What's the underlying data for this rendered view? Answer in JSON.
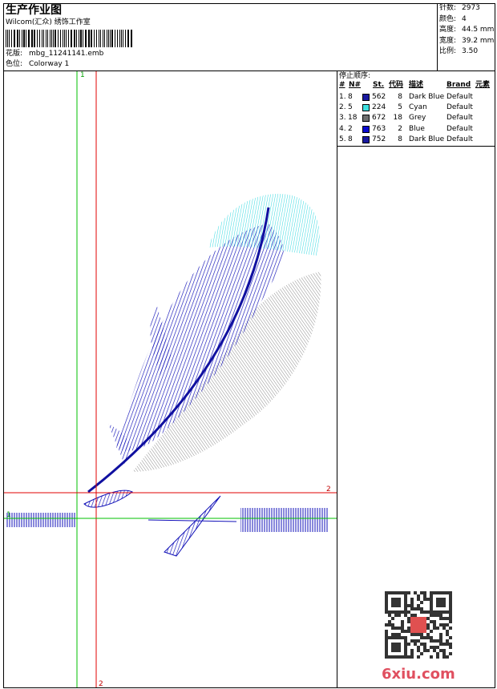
{
  "header": {
    "title": "生产作业图",
    "studio": "Wilcom(汇众) 绣饰工作室",
    "design_label": "花版:",
    "design_file": "mbg_11241141.emb",
    "colorway_label": "色位:",
    "colorway": "Colorway 1"
  },
  "info": [
    {
      "label": "针数:",
      "value": "2973"
    },
    {
      "label": "颜色:",
      "value": "4"
    },
    {
      "label": "高度:",
      "value": "44.5 mm"
    },
    {
      "label": "宽度:",
      "value": "39.2 mm"
    },
    {
      "label": "比例:",
      "value": "3.50"
    }
  ],
  "stop_sequence": {
    "title": "停止顺序:",
    "columns": [
      "#",
      "N#",
      "St.",
      "代码",
      "描述",
      "Brand",
      "元素"
    ],
    "rows": [
      {
        "index": "1.",
        "needle": 8,
        "color": "#1a1aa0",
        "stitches": 562,
        "code": 8,
        "description": "Dark Blue",
        "brand": "Default"
      },
      {
        "index": "2.",
        "needle": 5,
        "color": "#3de0e0",
        "stitches": 224,
        "code": 5,
        "description": "Cyan",
        "brand": "Default"
      },
      {
        "index": "3.",
        "needle": 18,
        "color": "#6e6e6e",
        "stitches": 672,
        "code": 18,
        "description": "Grey",
        "brand": "Default"
      },
      {
        "index": "4.",
        "needle": 2,
        "color": "#0a0ad0",
        "stitches": 763,
        "code": 2,
        "description": "Blue",
        "brand": "Default"
      },
      {
        "index": "5.",
        "needle": 8,
        "color": "#1a1aa0",
        "stitches": 752,
        "code": 8,
        "description": "Dark Blue",
        "brand": "Default"
      }
    ]
  },
  "guides": {
    "vertical_green": "1",
    "horizontal_red": "2",
    "horizontal_green": "1",
    "vertical_red": "2"
  },
  "watermark": "6xiu.com"
}
